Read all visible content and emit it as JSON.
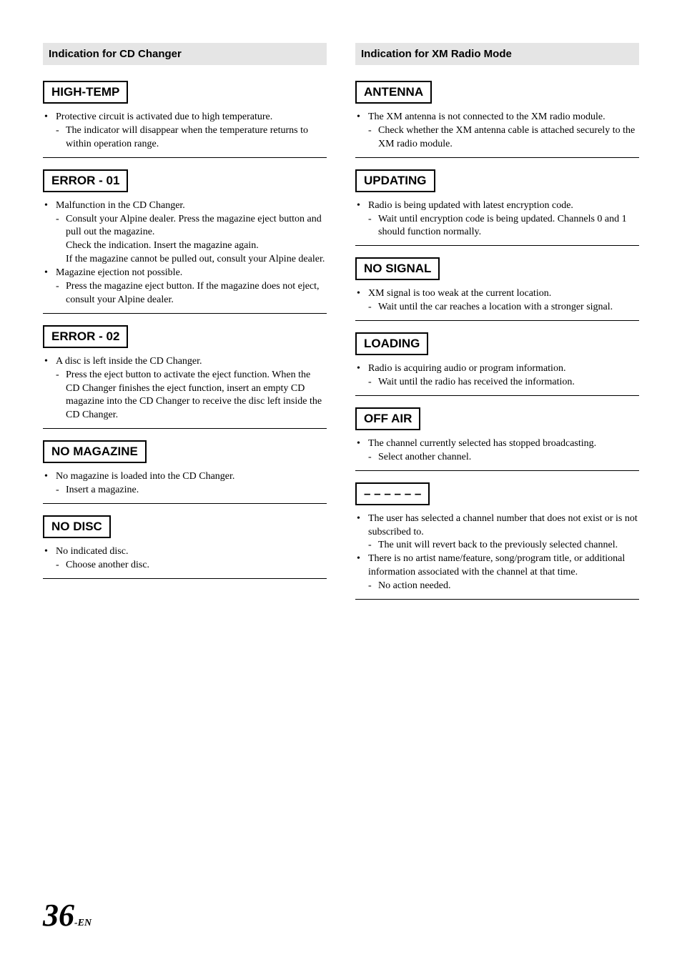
{
  "page_number": "36",
  "page_suffix": "-EN",
  "typography": {
    "body_font": "Times New Roman, serif",
    "heading_font": "Arial, Helvetica, sans-serif",
    "body_size_pt": 10.5,
    "heading_size_pt": 11,
    "error_label_size_pt": 13,
    "page_number_size_pt": 33
  },
  "colors": {
    "text": "#000000",
    "background": "#ffffff",
    "section_bg": "#e5e5e5",
    "border": "#000000"
  },
  "left_column": {
    "heading": "Indication for CD Changer",
    "entries": [
      {
        "label": "HIGH-TEMP",
        "items": [
          {
            "cause": "Protective circuit is activated due to high temperature.",
            "remedies": [
              "The indicator will disappear when the temperature returns to within operation range."
            ]
          }
        ]
      },
      {
        "label": "ERROR - 01",
        "items": [
          {
            "cause": "Malfunction in the CD Changer.",
            "remedies": [
              "Consult your Alpine dealer. Press the magazine eject button and pull out the magazine.\nCheck the indication. Insert the magazine again.\nIf the magazine cannot be pulled out, consult your Alpine dealer."
            ]
          },
          {
            "cause": "Magazine ejection not possible.",
            "remedies": [
              "Press the magazine eject button. If the magazine does not eject, consult your Alpine dealer."
            ]
          }
        ]
      },
      {
        "label": "ERROR - 02",
        "items": [
          {
            "cause": "A disc is left inside the CD Changer.",
            "remedies": [
              "Press the eject button to activate the eject function. When the CD Changer finishes the eject function, insert an empty CD magazine into the CD Changer to receive the disc left inside the CD Changer."
            ]
          }
        ]
      },
      {
        "label": "NO MAGAZINE",
        "items": [
          {
            "cause": "No magazine is loaded into the CD Changer.",
            "remedies": [
              "Insert a magazine."
            ]
          }
        ]
      },
      {
        "label": "NO DISC",
        "items": [
          {
            "cause": "No indicated disc.",
            "remedies": [
              "Choose another disc."
            ]
          }
        ]
      }
    ]
  },
  "right_column": {
    "heading": "Indication for XM Radio Mode",
    "entries": [
      {
        "label": "ANTENNA",
        "items": [
          {
            "cause": "The XM antenna is not connected to the XM radio module.",
            "remedies": [
              "Check whether the XM antenna cable is attached securely to the XM radio module."
            ]
          }
        ]
      },
      {
        "label": "UPDATING",
        "items": [
          {
            "cause": "Radio is being updated with latest encryption code.",
            "remedies": [
              "Wait until encryption code is being updated. Channels 0 and 1 should function normally."
            ]
          }
        ]
      },
      {
        "label": "NO SIGNAL",
        "items": [
          {
            "cause": "XM signal is too weak at the current location.",
            "remedies": [
              "Wait until the car reaches a location with a stronger signal."
            ]
          }
        ]
      },
      {
        "label": "LOADING",
        "items": [
          {
            "cause": "Radio is acquiring audio or program information.",
            "remedies": [
              "Wait until the radio has received the information."
            ]
          }
        ]
      },
      {
        "label": "OFF AIR",
        "items": [
          {
            "cause": "The channel currently selected has stopped broadcasting.",
            "remedies": [
              "Select another channel."
            ]
          }
        ]
      },
      {
        "label": "– – – – – –",
        "items": [
          {
            "cause": "The user has selected a channel number that does not exist or is not subscribed to.",
            "remedies": [
              "The unit will revert back to the previously selected channel."
            ]
          },
          {
            "cause": "There is no artist name/feature, song/program title, or additional information associated with the channel at that time.",
            "remedies": [
              "No action needed."
            ]
          }
        ]
      }
    ]
  }
}
